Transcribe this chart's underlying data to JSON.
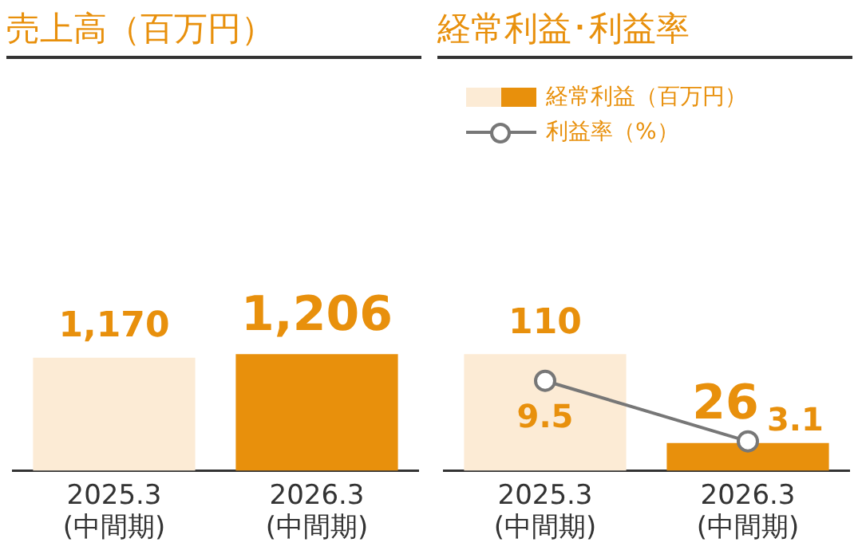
{
  "chart_data": [
    {
      "type": "bar",
      "title": "売上高（百万円）",
      "categories": [
        "2025.3\n(中間期)",
        "2026.3\n(中間期)"
      ],
      "series": [
        {
          "colors": [
            "#fcebd5",
            "#e8900c"
          ],
          "values": [
            1170,
            1206
          ],
          "value_labels": [
            "1,170",
            "1,206"
          ]
        }
      ],
      "tick_labels": "x",
      "grid": false,
      "legend": false
    },
    {
      "type": "bar",
      "title": "経常利益･利益率",
      "categories": [
        "2025.3\n(中間期)",
        "2026.3\n(中間期)"
      ],
      "series": [
        {
          "name": "経常利益（百万円）",
          "colors": [
            "#fcebd5",
            "#e8900c"
          ],
          "values": [
            110,
            26
          ]
        },
        {
          "type": "line",
          "name": "利益率（%）",
          "color": "#777777",
          "axis": "y2",
          "values": [
            9.5,
            3.1
          ]
        }
      ],
      "data_labels": true,
      "tick_labels": "x",
      "grid": false,
      "legend": "top",
      "marker": "circle",
      "line_style": "solid"
    }
  ]
}
